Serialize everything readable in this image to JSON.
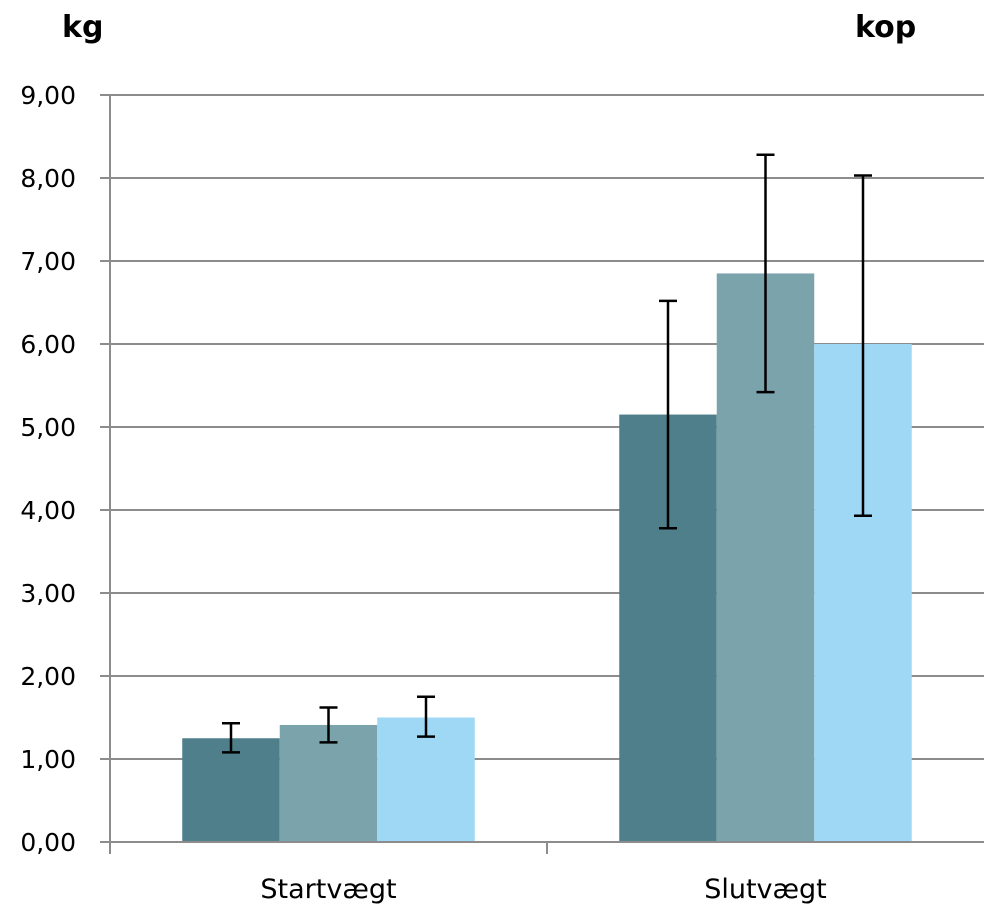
{
  "chart_data": {
    "type": "bar",
    "title": "kop",
    "xlabel": "",
    "ylabel": "kg",
    "categories": [
      "Startvægt",
      "Slutvægt"
    ],
    "ylim": [
      0,
      9
    ],
    "yticks": [
      "0,00",
      "1,00",
      "2,00",
      "3,00",
      "4,00",
      "5,00",
      "6,00",
      "7,00",
      "8,00",
      "9,00"
    ],
    "grid": true,
    "legend": "none",
    "series": [
      {
        "color": "#4F7F8B",
        "values": [
          1.25,
          5.15
        ],
        "error_low": [
          1.08,
          3.78
        ],
        "error_high": [
          1.43,
          6.52
        ]
      },
      {
        "color": "#7BA3AC",
        "values": [
          1.41,
          6.85
        ],
        "error_low": [
          1.2,
          5.42
        ],
        "error_high": [
          1.62,
          8.28
        ]
      },
      {
        "color": "#9ED8F4",
        "values": [
          1.5,
          6.0
        ],
        "error_low": [
          1.27,
          3.93
        ],
        "error_high": [
          1.75,
          8.03
        ]
      }
    ]
  }
}
